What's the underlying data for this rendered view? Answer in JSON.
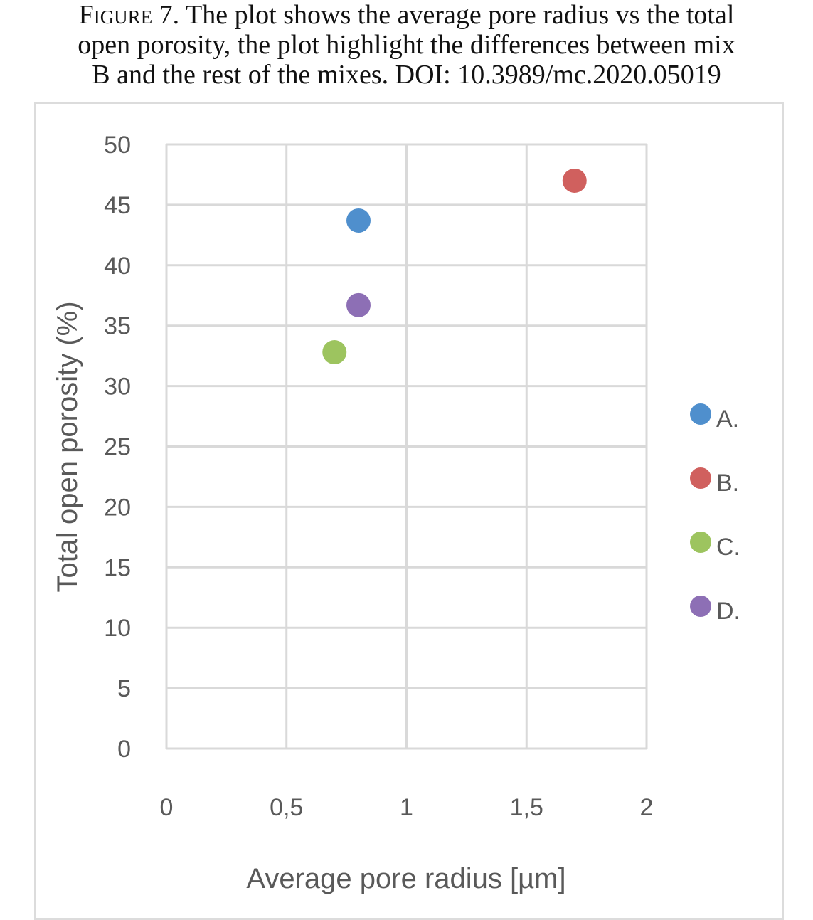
{
  "caption": {
    "figure_label": "Figure 7.",
    "line1": "The plot shows the average pore radius vs the total",
    "line2": "open porosity, the plot highlight the differences between mix",
    "line3": "B and the rest of  the mixes. DOI: 10.3989/mc.2020.05019"
  },
  "chart_data": {
    "type": "scatter",
    "xlabel": "Average pore radius [µm]",
    "ylabel": "Total open porosity (%)",
    "xlim": [
      0,
      2
    ],
    "ylim": [
      0,
      50
    ],
    "x_ticks": [
      0,
      0.5,
      1,
      1.5,
      2
    ],
    "x_tick_labels": [
      "0",
      "0,5",
      "1",
      "1,5",
      "2"
    ],
    "y_ticks": [
      0,
      5,
      10,
      15,
      20,
      25,
      30,
      35,
      40,
      45,
      50
    ],
    "y_tick_labels": [
      "0",
      "5",
      "10",
      "15",
      "20",
      "25",
      "30",
      "35",
      "40",
      "45",
      "50"
    ],
    "grid": true,
    "legend_position": "right",
    "series": [
      {
        "name": "A.",
        "color": "#4f8fcd",
        "x": [
          0.8
        ],
        "y": [
          43.7
        ]
      },
      {
        "name": "B.",
        "color": "#d0605e",
        "x": [
          1.7
        ],
        "y": [
          47.0
        ]
      },
      {
        "name": "C.",
        "color": "#9dc45f",
        "x": [
          0.7
        ],
        "y": [
          32.8
        ]
      },
      {
        "name": "D.",
        "color": "#8d6fb5",
        "x": [
          0.8
        ],
        "y": [
          36.7
        ]
      }
    ]
  }
}
